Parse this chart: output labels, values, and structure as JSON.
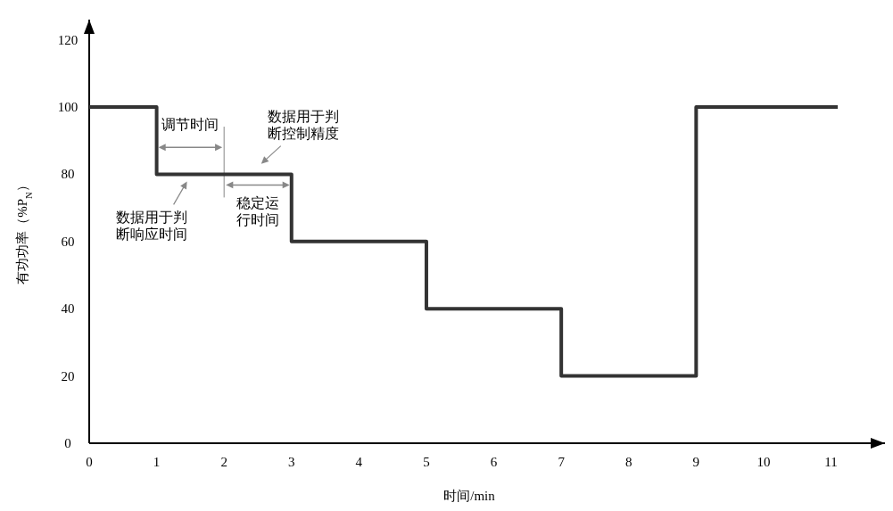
{
  "chart_data": {
    "type": "step",
    "xlabel": "时间/min",
    "ylabel": "有功功率（%P$_{N}$）",
    "x": [
      0,
      1,
      3,
      5,
      7,
      9,
      11.1
    ],
    "series": [
      {
        "color": "#333333",
        "values": [
          100,
          80,
          60,
          40,
          20,
          100,
          100
        ]
      }
    ],
    "xlim": [
      0,
      11.8
    ],
    "ylim": [
      0,
      126
    ],
    "xticks": [
      0,
      1,
      2,
      3,
      4,
      5,
      6,
      7,
      8,
      9,
      10,
      11
    ],
    "yticks": [
      0,
      20,
      40,
      60,
      80,
      100,
      120
    ],
    "grid": false,
    "marker": "none",
    "line_style": "solid",
    "annotations": [
      "调节时间",
      "稳定运行时间",
      {
        "text": "数据用于判断响应时间",
        "x": 1.45,
        "y": 80
      },
      {
        "text": "数据用于判断控制精度",
        "x": 2.55,
        "y": 81
      }
    ]
  }
}
